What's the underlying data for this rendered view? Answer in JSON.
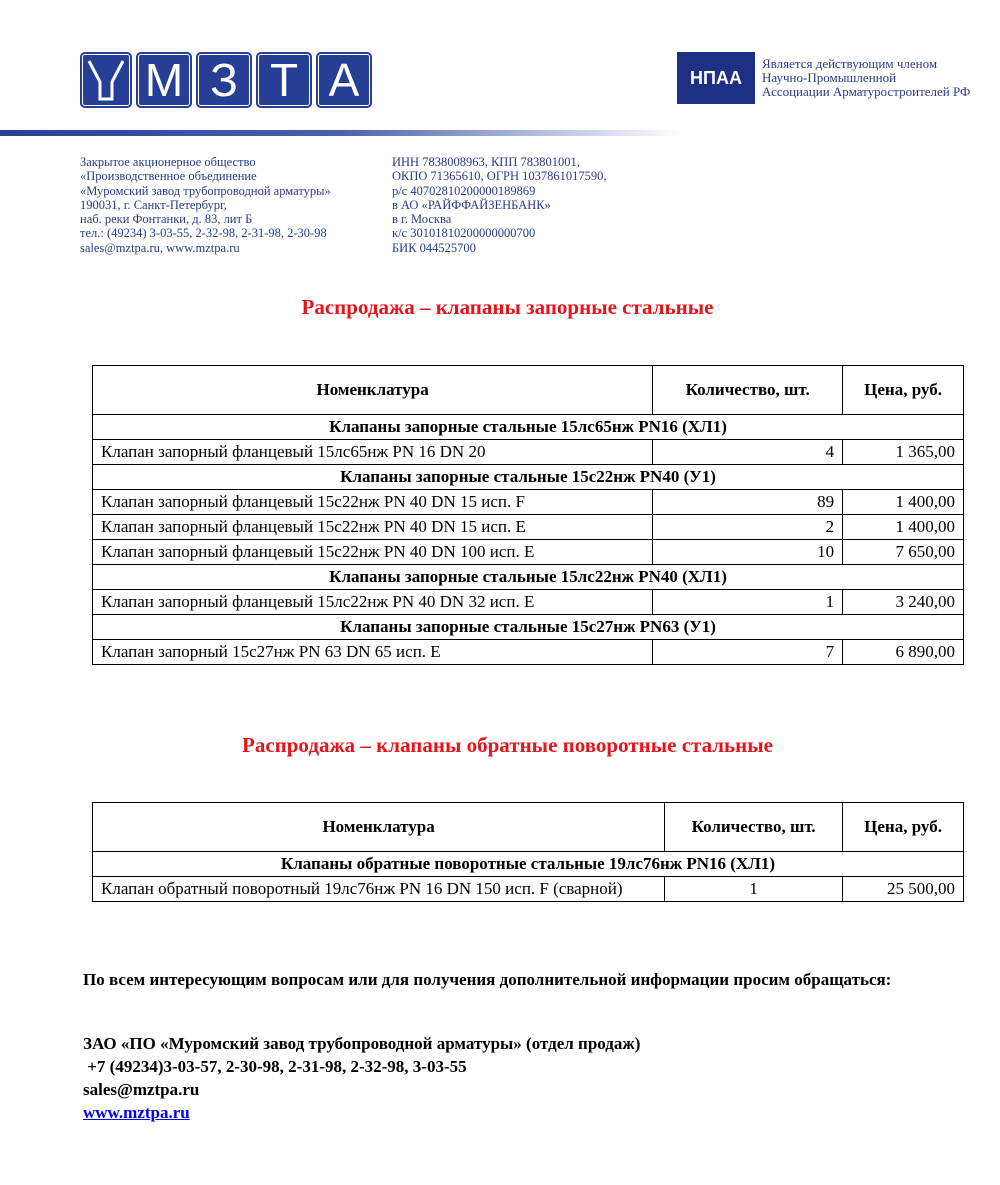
{
  "header": {
    "logo_letters": [
      "М",
      "З",
      "Т",
      "А"
    ],
    "logo_text": "МЗТА",
    "npaa_logo": "НПАА",
    "npaa_lines": [
      "Является действующим членом",
      "Научно-Промышленной",
      "Ассоциации Арматуростроителей РФ"
    ],
    "address_lines": [
      "Закрытое акционерное общество",
      "«Производственное объединение",
      "«Муромский завод трубопроводной арматуры»",
      "190031, г. Санкт-Петербург,",
      "наб. реки Фонтанки, д. 83, лит Б",
      "тел.: (49234) 3-03-55, 2-32-98, 2-31-98, 2-30-98",
      "sales@mztpa.ru, www.mztpa.ru"
    ],
    "bank_lines": [
      "ИНН 7838008963, КПП 783801001,",
      "ОКПО 71365610, ОГРН 1037861017590,",
      "р/с 40702810200000189869",
      "в АО «РАЙФФАЙЗЕНБАНК»",
      "в г. Москва",
      "к/с 30101810200000000700",
      "БИК 044525700"
    ]
  },
  "section1": {
    "title": "Распродажа – клапаны запорные стальные",
    "headers": [
      "Номенклатура",
      "Количество, шт.",
      "Цена, руб."
    ],
    "groups": [
      {
        "name": "Клапаны запорные стальные 15лс65нж PN16 (ХЛ1)",
        "rows": [
          [
            "Клапан запорный фланцевый 15лс65нж PN 16 DN 20",
            "4",
            "1 365,00"
          ]
        ]
      },
      {
        "name": "Клапаны запорные стальные 15с22нж PN40 (У1)",
        "rows": [
          [
            "Клапан запорный фланцевый 15с22нж PN 40 DN 15 исп. F",
            "89",
            "1 400,00"
          ],
          [
            "Клапан запорный фланцевый 15с22нж PN 40 DN 15 исп. E",
            "2",
            "1 400,00"
          ],
          [
            "Клапан запорный фланцевый 15с22нж PN 40 DN 100 исп. E",
            "10",
            "7 650,00"
          ]
        ]
      },
      {
        "name": "Клапаны запорные стальные 15лс22нж PN40 (ХЛ1)",
        "rows": [
          [
            "Клапан запорный фланцевый 15лс22нж PN 40 DN 32 исп. E",
            "1",
            "3 240,00"
          ]
        ]
      },
      {
        "name": "Клапаны запорные стальные 15с27нж PN63 (У1)",
        "rows": [
          [
            "Клапан запорный 15с27нж PN 63 DN 65 исп. E",
            "7",
            "6 890,00"
          ]
        ]
      }
    ]
  },
  "section2": {
    "title": "Распродажа – клапаны обратные поворотные стальные",
    "headers": [
      "Номенклатура",
      "Количество, шт.",
      "Цена, руб."
    ],
    "groups": [
      {
        "name": "Клапаны обратные поворотные стальные 19лс76нж PN16 (ХЛ1)",
        "rows": [
          [
            "Клапан обратный поворотный 19лс76нж PN 16 DN 150 исп. F (сварной)",
            "1",
            "25 500,00"
          ]
        ]
      }
    ]
  },
  "footer": {
    "intro": "По всем интересующим вопросам или для получения дополнительной информации просим обращаться:",
    "company": "ЗАО «ПО «Муромский завод трубопроводной арматуры» (отдел продаж)",
    "phones": " +7 (49234)3-03-57, 2-30-98, 2-31-98, 2-32-98, 3-03-55",
    "email": "sales@mztpa.ru",
    "website": "www.mztpa.ru"
  },
  "colors": {
    "brand_blue": "#273e95",
    "title_red": "#e8141b",
    "link": "#0000ee"
  }
}
